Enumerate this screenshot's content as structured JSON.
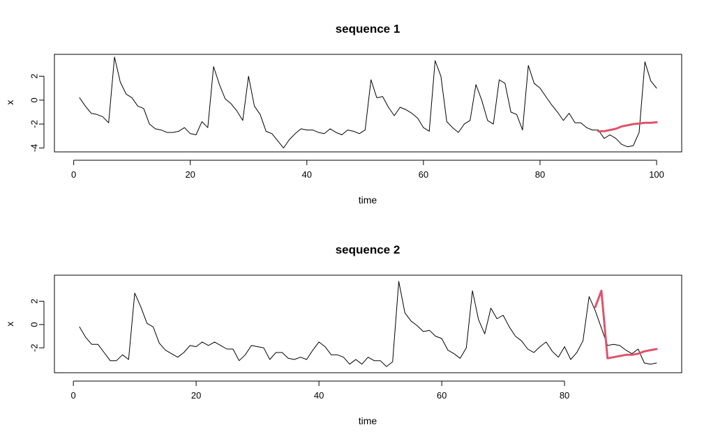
{
  "chart_data": [
    {
      "type": "line",
      "title": "sequence 1",
      "xlabel": "time",
      "ylabel": "x",
      "xlim": [
        1,
        100
      ],
      "ylim": [
        -4,
        3.5
      ],
      "xticks": [
        0,
        20,
        40,
        60,
        80,
        100
      ],
      "yticks": [
        -4,
        -2,
        0,
        2
      ],
      "grid": false,
      "series": [
        {
          "color": "#000000",
          "x": [
            1,
            2,
            3,
            4,
            5,
            6,
            7,
            8,
            9,
            10,
            11,
            12,
            13,
            14,
            15,
            16,
            17,
            18,
            19,
            20,
            21,
            22,
            23,
            24,
            25,
            26,
            27,
            28,
            29,
            30,
            31,
            32,
            33,
            34,
            35,
            36,
            37,
            38,
            39,
            40,
            41,
            42,
            43,
            44,
            45,
            46,
            47,
            48,
            49,
            50,
            51,
            52,
            53,
            54,
            55,
            56,
            57,
            58,
            59,
            60,
            61,
            62,
            63,
            64,
            65,
            66,
            67,
            68,
            69,
            70,
            71,
            72,
            73,
            74,
            75,
            76,
            77,
            78,
            79,
            80,
            81,
            82,
            83,
            84,
            85,
            86,
            87,
            88,
            89,
            90,
            91,
            92,
            93,
            94,
            95,
            96,
            97,
            98,
            99,
            100
          ],
          "values": [
            0.2,
            -0.5,
            -1.1,
            -1.2,
            -1.4,
            -1.9,
            3.6,
            1.5,
            0.5,
            0.2,
            -0.5,
            -0.7,
            -2.0,
            -2.4,
            -2.5,
            -2.7,
            -2.7,
            -2.6,
            -2.3,
            -2.8,
            -2.9,
            -1.8,
            -2.3,
            2.8,
            1.3,
            0.1,
            -0.3,
            -0.9,
            -1.7,
            2.0,
            -0.5,
            -1.2,
            -2.6,
            -2.8,
            -3.4,
            -4.0,
            -3.3,
            -2.8,
            -2.4,
            -2.5,
            -2.5,
            -2.7,
            -2.8,
            -2.4,
            -2.7,
            -2.9,
            -2.5,
            -2.6,
            -2.8,
            -2.5,
            1.7,
            0.2,
            0.3,
            -0.6,
            -1.3,
            -0.6,
            -0.8,
            -1.1,
            -1.5,
            -2.3,
            -2.6,
            3.3,
            2.0,
            -1.8,
            -2.3,
            -2.7,
            -2.0,
            -1.7,
            1.3,
            0.0,
            -1.7,
            -2.0,
            1.7,
            1.4,
            -1.0,
            -1.2,
            -2.5,
            2.9,
            1.4,
            1.0,
            0.3,
            -0.4,
            -1.0,
            -1.7,
            -1.1,
            -1.9,
            -1.9,
            -2.3,
            -2.5,
            -2.5,
            -3.2,
            -2.9,
            -3.2,
            -3.7,
            -3.9,
            -3.8,
            -2.7,
            3.2,
            1.6,
            1.0
          ]
        },
        {
          "color": "#DF536B",
          "x": [
            90,
            91,
            92,
            93,
            94,
            95,
            96,
            97,
            98,
            99,
            100
          ],
          "values": [
            -2.6,
            -2.6,
            -2.5,
            -2.4,
            -2.2,
            -2.1,
            -2.0,
            -1.95,
            -1.9,
            -1.9,
            -1.85
          ]
        }
      ]
    },
    {
      "type": "line",
      "title": "sequence 2",
      "xlabel": "time",
      "ylabel": "x",
      "xlim": [
        1,
        95
      ],
      "ylim": [
        -3.8,
        3.9
      ],
      "xticks": [
        0,
        20,
        40,
        60,
        80
      ],
      "yticks": [
        -2,
        0,
        2
      ],
      "grid": false,
      "series": [
        {
          "color": "#000000",
          "x": [
            1,
            2,
            3,
            4,
            5,
            6,
            7,
            8,
            9,
            10,
            11,
            12,
            13,
            14,
            15,
            16,
            17,
            18,
            19,
            20,
            21,
            22,
            23,
            24,
            25,
            26,
            27,
            28,
            29,
            30,
            31,
            32,
            33,
            34,
            35,
            36,
            37,
            38,
            39,
            40,
            41,
            42,
            43,
            44,
            45,
            46,
            47,
            48,
            49,
            50,
            51,
            52,
            53,
            54,
            55,
            56,
            57,
            58,
            59,
            60,
            61,
            62,
            63,
            64,
            65,
            66,
            67,
            68,
            69,
            70,
            71,
            72,
            73,
            74,
            75,
            76,
            77,
            78,
            79,
            80,
            81,
            82,
            83,
            84,
            85,
            86,
            87,
            88,
            89,
            90,
            91,
            92,
            93,
            94,
            95
          ],
          "values": [
            -0.2,
            -1.1,
            -1.7,
            -1.7,
            -2.4,
            -3.1,
            -3.1,
            -2.6,
            -3.0,
            2.7,
            1.5,
            0.1,
            -0.2,
            -1.6,
            -2.2,
            -2.5,
            -2.8,
            -2.4,
            -1.8,
            -1.9,
            -1.5,
            -1.8,
            -1.5,
            -1.8,
            -2.1,
            -2.1,
            -3.1,
            -2.6,
            -1.8,
            -1.9,
            -2.0,
            -3.0,
            -2.4,
            -2.4,
            -2.9,
            -3.0,
            -2.8,
            -3.0,
            -2.2,
            -1.5,
            -1.9,
            -2.6,
            -2.6,
            -2.8,
            -3.4,
            -3.0,
            -3.4,
            -2.8,
            -3.1,
            -3.1,
            -3.6,
            -3.2,
            3.7,
            1.0,
            0.3,
            -0.1,
            -0.6,
            -0.5,
            -1.0,
            -1.2,
            -2.2,
            -2.5,
            -2.9,
            -2.0,
            2.9,
            0.4,
            -0.8,
            1.4,
            0.5,
            0.8,
            -0.2,
            -1.0,
            -1.4,
            -2.1,
            -2.4,
            -1.9,
            -1.5,
            -2.3,
            -2.8,
            -1.9,
            -3.0,
            -2.4,
            -1.4,
            2.4,
            1.2,
            -0.3,
            -1.8,
            -1.7,
            -1.8,
            -2.2,
            -2.5,
            -2.1,
            -3.3,
            -3.4,
            -3.3
          ]
        },
        {
          "color": "#DF536B",
          "x": [
            85,
            86,
            87,
            88,
            89,
            90,
            91,
            92,
            93,
            94,
            95
          ],
          "values": [
            1.5,
            2.9,
            -2.9,
            -2.8,
            -2.7,
            -2.6,
            -2.6,
            -2.5,
            -2.3,
            -2.2,
            -2.1
          ]
        }
      ]
    }
  ]
}
